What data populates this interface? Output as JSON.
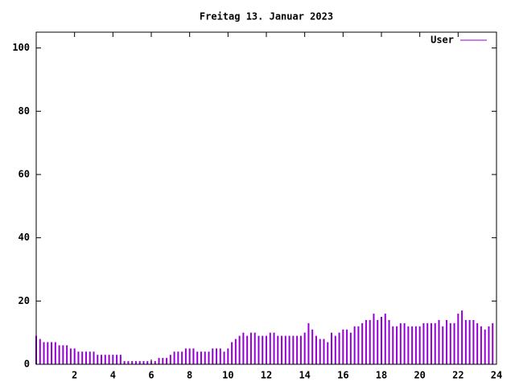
{
  "chart_data": {
    "type": "impulse",
    "title": "Freitag 13. Januar 2023",
    "x": [
      0,
      0.2,
      0.4,
      0.6,
      0.8,
      1,
      1.2,
      1.4,
      1.6,
      1.8,
      2,
      2.2,
      2.4,
      2.6,
      2.8,
      3,
      3.2,
      3.4,
      3.6,
      3.8,
      4,
      4.2,
      4.4,
      4.6,
      4.8,
      5,
      5.2,
      5.4,
      5.6,
      5.8,
      6,
      6.2,
      6.4,
      6.6,
      6.8,
      7,
      7.2,
      7.4,
      7.6,
      7.8,
      8,
      8.2,
      8.4,
      8.6,
      8.8,
      9,
      9.2,
      9.4,
      9.6,
      9.8,
      10,
      10.2,
      10.4,
      10.6,
      10.8,
      11,
      11.2,
      11.4,
      11.6,
      11.8,
      12,
      12.2,
      12.4,
      12.6,
      12.8,
      13,
      13.2,
      13.4,
      13.6,
      13.8,
      14,
      14.2,
      14.4,
      14.6,
      14.8,
      15,
      15.2,
      15.4,
      15.6,
      15.8,
      16,
      16.2,
      16.4,
      16.6,
      16.8,
      17,
      17.2,
      17.4,
      17.6,
      17.8,
      18,
      18.2,
      18.4,
      18.6,
      18.8,
      19,
      19.2,
      19.4,
      19.6,
      19.8,
      20,
      20.2,
      20.4,
      20.6,
      20.8,
      21,
      21.2,
      21.4,
      21.6,
      21.8,
      22,
      22.2,
      22.4,
      22.6,
      22.8,
      23,
      23.2,
      23.4,
      23.6,
      23.8
    ],
    "series": [
      {
        "name": "User",
        "color": "#9400d3",
        "values": [
          9,
          8,
          7,
          7,
          7,
          7,
          6,
          6,
          6,
          5,
          5,
          4,
          4,
          4,
          4,
          4,
          3,
          3,
          3,
          3,
          3,
          3,
          3,
          1,
          1,
          1,
          1,
          1,
          1,
          1,
          1,
          1,
          2,
          2,
          2,
          3,
          4,
          4,
          4,
          5,
          5,
          5,
          4,
          4,
          4,
          4,
          5,
          5,
          5,
          4,
          5,
          7,
          8,
          9,
          10,
          9,
          10,
          10,
          9,
          9,
          9,
          10,
          10,
          9,
          9,
          9,
          9,
          9,
          9,
          9,
          10,
          13,
          11,
          9,
          8,
          8,
          7,
          10,
          9,
          10,
          11,
          11,
          10,
          12,
          12,
          13,
          14,
          14,
          16,
          14,
          15,
          16,
          14,
          12,
          12,
          13,
          13,
          12,
          12,
          12,
          12,
          13,
          13,
          13,
          13,
          14,
          12,
          14,
          13,
          13,
          16,
          17,
          14,
          14,
          14,
          13,
          12,
          11,
          12,
          13
        ]
      }
    ],
    "xlim": [
      0,
      24
    ],
    "xticks": [
      2,
      4,
      6,
      8,
      10,
      12,
      14,
      16,
      18,
      20,
      22,
      24
    ],
    "ylim": [
      0,
      105
    ],
    "yticks": [
      0,
      20,
      40,
      60,
      80,
      100
    ],
    "legend": "top-right"
  }
}
